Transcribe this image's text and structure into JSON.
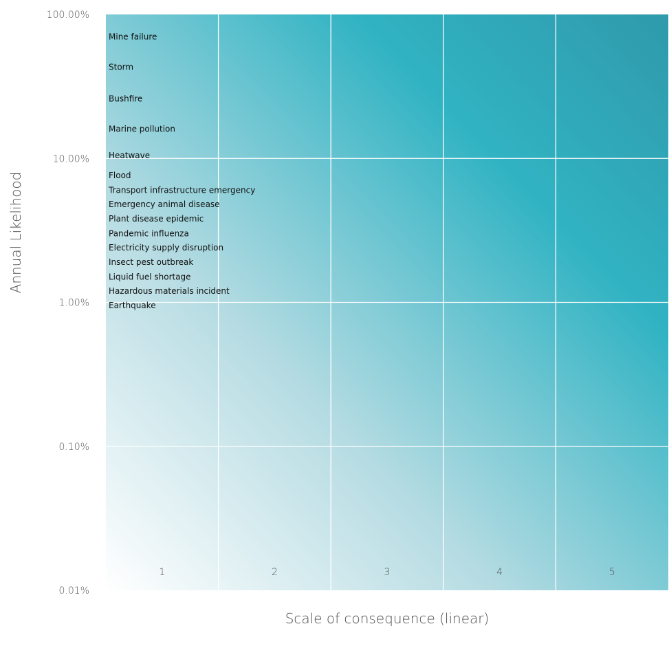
{
  "chart_data": {
    "type": "scatter",
    "xlabel": "Scale of consequence (linear)",
    "ylabel": "Annual Likelihood",
    "x_ticks": [
      "1",
      "2",
      "3",
      "4",
      "5"
    ],
    "y_ticks": [
      "100.00%",
      "10.00%",
      "1.00%",
      "0.10%",
      "0.01%"
    ],
    "y_scale": "log",
    "ylim": [
      0.01,
      100
    ],
    "xlim": [
      0.5,
      5.5
    ],
    "grid": true,
    "background": "gradient from white (bottom-left) to teal (top-right)",
    "colors": {
      "low": "#ffffff",
      "mid": "#30b4c4",
      "high": "#2f9fb0"
    },
    "points": [
      {
        "label": "Mine failure",
        "x": 1,
        "y": 70
      },
      {
        "label": "Storm",
        "x": 1,
        "y": 43
      },
      {
        "label": "Bushfire",
        "x": 1,
        "y": 26
      },
      {
        "label": "Marine pollution",
        "x": 1,
        "y": 16
      },
      {
        "label": "Heatwave",
        "x": 1,
        "y": 10.5
      },
      {
        "label": "Flood",
        "x": 1,
        "y": 7.6
      },
      {
        "label": "Transport infrastructure emergency",
        "x": 1,
        "y": 6.0
      },
      {
        "label": "Emergency animal disease",
        "x": 1,
        "y": 4.8
      },
      {
        "label": "Plant disease epidemic",
        "x": 1,
        "y": 3.8
      },
      {
        "label": "Pandemic influenza",
        "x": 1,
        "y": 3.0
      },
      {
        "label": "Electricity supply disruption",
        "x": 1,
        "y": 2.4
      },
      {
        "label": "Insect pest outbreak",
        "x": 1,
        "y": 1.9
      },
      {
        "label": "Liquid fuel shortage",
        "x": 1,
        "y": 1.5
      },
      {
        "label": "Hazardous materials incident",
        "x": 1,
        "y": 1.2
      },
      {
        "label": "Earthquake",
        "x": 1,
        "y": 0.95
      }
    ]
  }
}
